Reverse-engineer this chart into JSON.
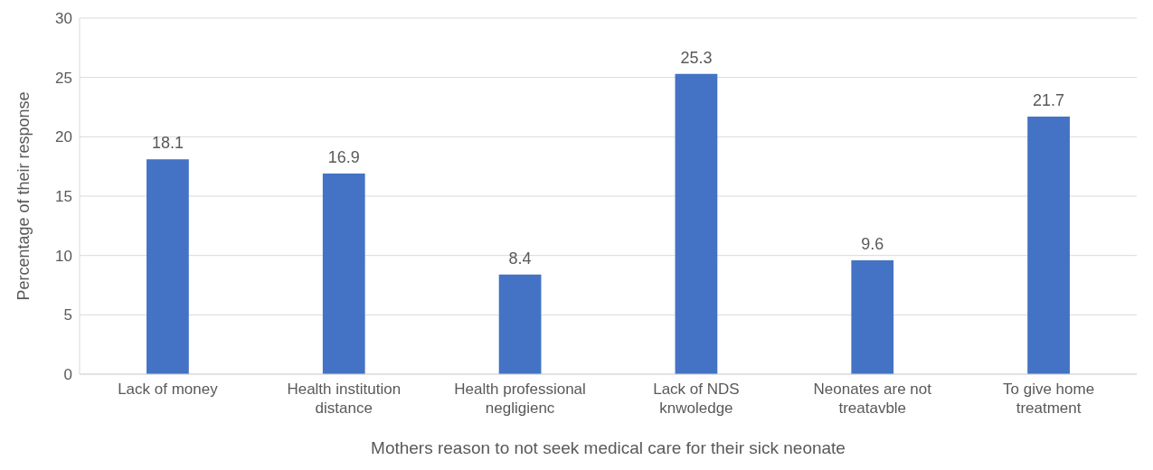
{
  "chart_data": {
    "type": "bar",
    "xlabel": "Mothers reason to not seek medical care for their sick neonate",
    "ylabel": "Percentage of their response",
    "categories": [
      "Lack of money",
      "Health institution distance",
      "Health professional negligienc",
      "Lack of NDS knwoledge",
      "Neonates are not treatavble",
      "To give home treatment"
    ],
    "values": [
      18.1,
      16.9,
      8.4,
      25.3,
      9.6,
      21.7
    ],
    "color": "#4472c4",
    "ylim": [
      0,
      30
    ],
    "yticks": [
      0,
      5,
      10,
      15,
      20,
      25,
      30
    ],
    "grid": "y",
    "data_labels": true
  }
}
